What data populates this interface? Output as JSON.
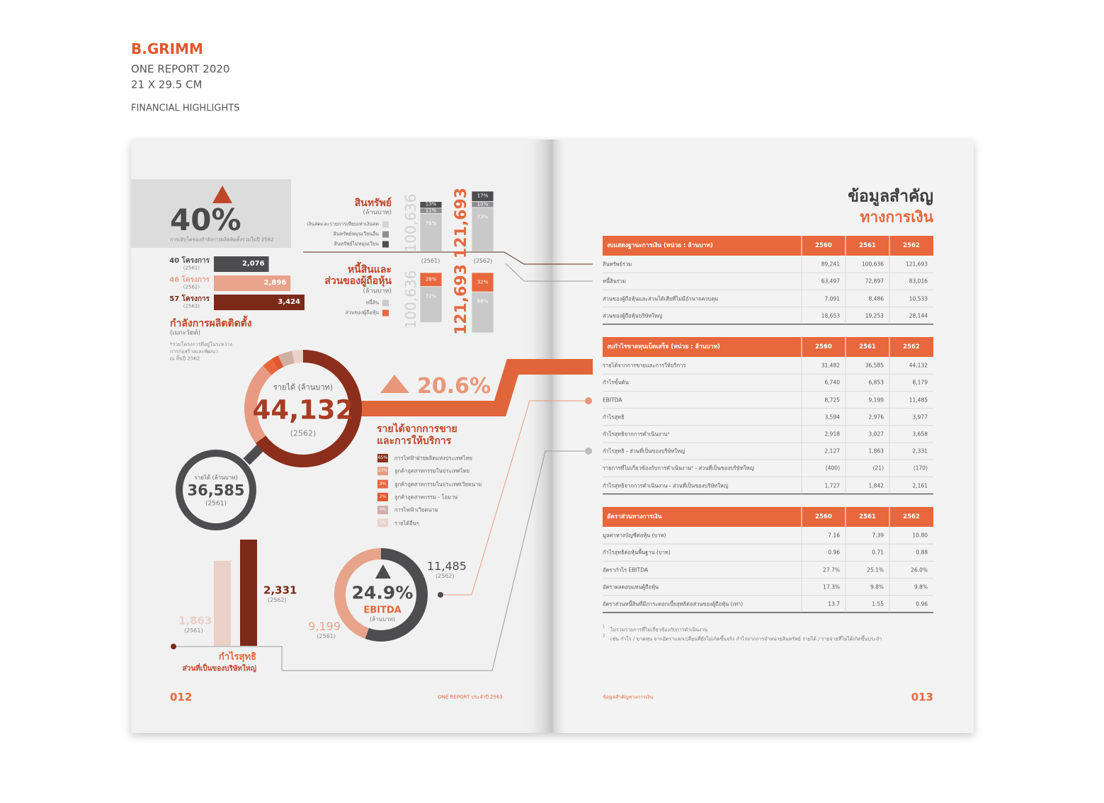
{
  "header": {
    "brand": "B.GRIMM",
    "lines": [
      "ONE REPORT 2020",
      "21 X 29.5 CM"
    ],
    "section": "FINANCIAL HIGHLIGHTS"
  },
  "left_page": {
    "capacity_growth": {
      "value": "40%",
      "caption": "การเติบโตของกำลังการผลิตติดตั้งรวมในปี 2562"
    },
    "capacity": {
      "bars": [
        {
          "label": "40 โครงการ",
          "year": "(2561)",
          "value": "2,076",
          "color": "#4d4d4f"
        },
        {
          "label": "46 โครงการ",
          "year": "(2562)",
          "value": "2,896",
          "color": "#e8a38b"
        },
        {
          "label": "57 โครงการ",
          "year": "(2563)",
          "value": "3,424",
          "color": "#7b2a1a"
        }
      ],
      "title": "กำลังการผลิตติดตั้ง",
      "unit": "(เมกะวัตต์)",
      "note": [
        "*รวมโครงการที่อยู่ในระหว่าง",
        "การก่อสร้างและพัฒนา",
        "ณ สิ้นปี 2562"
      ]
    },
    "assets": {
      "title": "สินทรัพย์",
      "unit": "(ล้านบาท)",
      "legend": [
        {
          "label": "เงินสดและรายการเทียบเท่าเงินสด",
          "color": "#d4d4d4"
        },
        {
          "label": "สินทรัพย์หมุนเวียนอื่น",
          "color": "#8e8e90"
        },
        {
          "label": "สินทรัพย์ไม่หมุนเวียน",
          "color": "#4d4d4f"
        }
      ],
      "columns": [
        {
          "total": "100,636",
          "segments": [
            "13%",
            "11%",
            "76%"
          ]
        },
        {
          "total": "121,693",
          "segments": [
            "17%",
            "10%",
            "73%"
          ]
        }
      ],
      "segment_colors": [
        "#4d4d4f",
        "#8e8e90",
        "#c9c9c9"
      ]
    },
    "years": [
      "(2561)",
      "(2562)"
    ],
    "liabilities": {
      "title": [
        "หนี้สินและ",
        "ส่วนของผู้ถือหุ้น"
      ],
      "unit": "(ล้านบาท)",
      "legend": [
        {
          "label": "หนี้สิน",
          "color": "#c9c9c9"
        },
        {
          "label": "ส่วนของผู้ถือหุ้น",
          "color": "#e8673d"
        }
      ],
      "columns": [
        {
          "total": "100,636",
          "segments": [
            "28%",
            "72%"
          ]
        },
        {
          "total": "121,693",
          "segments": [
            "32%",
            "68%"
          ]
        }
      ],
      "segment_colors": [
        "#e8673d",
        "#c9c9c9"
      ]
    },
    "revenue": {
      "current": {
        "label": "รายได้ (ล้านบาท)",
        "value": "44,132",
        "year": "(2562)"
      },
      "previous": {
        "label": "รายได้ (ล้านบาท)",
        "value": "36,585",
        "year": "(2561)"
      },
      "growth": "20.6%",
      "title": [
        "รายได้จากการขาย",
        "และการให้บริการ"
      ],
      "breakdown": [
        {
          "share": "65%",
          "label": "การไฟฟ้าฝ่ายผลิตแห่งประเทศไทย",
          "color": "#8b2f1c"
        },
        {
          "share": "23%",
          "label": "ลูกค้าอุตสาหกรรมในประเทศไทย",
          "color": "#e89b82"
        },
        {
          "share": "3%",
          "label": "ลูกค้าอุตสาหกรรมในประเทศเวียดนาม",
          "color": "#e8673d"
        },
        {
          "share": "2%",
          "label": "ลูกค้าอุตสาหกรรม - โอมาน",
          "color": "#e2562f"
        },
        {
          "share": "4%",
          "label": "การไฟฟ้าเวียดนาม",
          "color": "#cfaea4"
        },
        {
          "share": "3%",
          "label": "รายได้อื่นๆ",
          "color": "#ead2c9"
        }
      ]
    },
    "ebitda": {
      "growth": "24.9%",
      "label": "EBITDA",
      "unit": "(ล้านบาท)",
      "current": {
        "value": "11,485",
        "year": "(2562)"
      },
      "previous": {
        "value": "9,199",
        "year": "(2561)"
      }
    },
    "net_profit": {
      "current": {
        "value": "2,331",
        "year": "(2562)"
      },
      "previous": {
        "value": "1,863",
        "year": "(2561)"
      },
      "title": [
        "กำไรสุทธิ",
        "ส่วนที่เป็นของบริษัทใหญ่"
      ]
    },
    "footer": {
      "page": "012",
      "text": "ONE REPORT ประจำปี 2563"
    }
  },
  "right_page": {
    "title": [
      "ข้อมูลสำคัญ",
      "ทางการเงิน"
    ],
    "tables": [
      {
        "header": [
          "งบแสดงฐานะการเงิน (หน่วย : ล้านบาท)",
          "2560",
          "2561",
          "2562"
        ],
        "rows": [
          [
            "สินทรัพย์รวม",
            "89,241",
            "100,636",
            "121,693"
          ],
          [
            "หนี้สินรวม",
            "63,497",
            "72,897",
            "83,016"
          ],
          [
            "ส่วนของผู้ถือหุ้นและส่วนได้เสียที่ไม่มีอำนาจควบคุม",
            "7,091",
            "8,486",
            "10,533"
          ],
          [
            "ส่วนของผู้ถือหุ้นบริษัทใหญ่",
            "18,653",
            "19,253",
            "28,144"
          ]
        ]
      },
      {
        "header": [
          "งบกำไรขาดทุนเบ็ดเสร็จ (หน่วย : ล้านบาท)",
          "2560",
          "2561",
          "2562"
        ],
        "rows": [
          [
            "รายได้จากการขายและการให้บริการ",
            "31,482",
            "36,585",
            "44,132"
          ],
          [
            "กำไรขั้นต้น",
            "6,740",
            "6,853",
            "8,179"
          ],
          [
            "EBITDA",
            "8,725",
            "9,199",
            "11,485"
          ],
          [
            "กำไรสุทธิ",
            "3,594",
            "2,976",
            "3,977"
          ],
          [
            "กำไรสุทธิจากการดำเนินงาน¹",
            "2,918",
            "3,027",
            "3,658"
          ],
          [
            "กำไรสุทธิ - ส่วนที่เป็นของบริษัทใหญ่",
            "2,127",
            "1,863",
            "2,331"
          ],
          [
            "รายการที่ไม่เกี่ยวข้องกับการดำเนินงาน² - ส่วนที่เป็นของบริษัทใหญ่",
            "(400)",
            "(21)",
            "(170)"
          ],
          [
            "กำไรสุทธิจากการดำเนินงาน - ส่วนที่เป็นของบริษัทใหญ่",
            "1,727",
            "1,842",
            "2,161"
          ]
        ]
      },
      {
        "header": [
          "อัตราส่วนทางการเงิน",
          "2560",
          "2561",
          "2562"
        ],
        "rows": [
          [
            "มูลค่าทางบัญชีต่อหุ้น (บาท)",
            "7.16",
            "7.39",
            "10.80"
          ],
          [
            "กำไรสุทธิต่อหุ้นพื้นฐาน (บาท)",
            "0.96",
            "0.71",
            "0.88"
          ],
          [
            "อัตรากำไร EBITDA",
            "27.7%",
            "25.1%",
            "26.0%"
          ],
          [
            "อัตราผลตอบแทนผู้ถือหุ้น",
            "17.3%",
            "9.8%",
            "9.8%"
          ],
          [
            "อัตราส่วนหนี้สินที่มีภาระดอกเบี้ยสุทธิต่อส่วนของผู้ถือหุ้น (เท่า)",
            "13.7",
            "1.55",
            "0.96"
          ]
        ]
      }
    ],
    "footnotes": [
      {
        "mark": "1",
        "text": "ไม่รวมรายการที่ไม่เกี่ยวข้องกับการดำเนินงาน"
      },
      {
        "mark": "2",
        "text": "เช่น กำไร / ขาดทุน จากอัตราแลกเปลี่ยนที่ยังไม่เกิดขึ้นจริง กำไรจากการจำหน่ายสินทรัพย์ รายได้ / รายจ่ายที่ไม่ได้เกิดขึ้นประจำ"
      }
    ],
    "footer": {
      "text": "ข้อมูลสำคัญทางการเงิน",
      "page": "013"
    }
  }
}
